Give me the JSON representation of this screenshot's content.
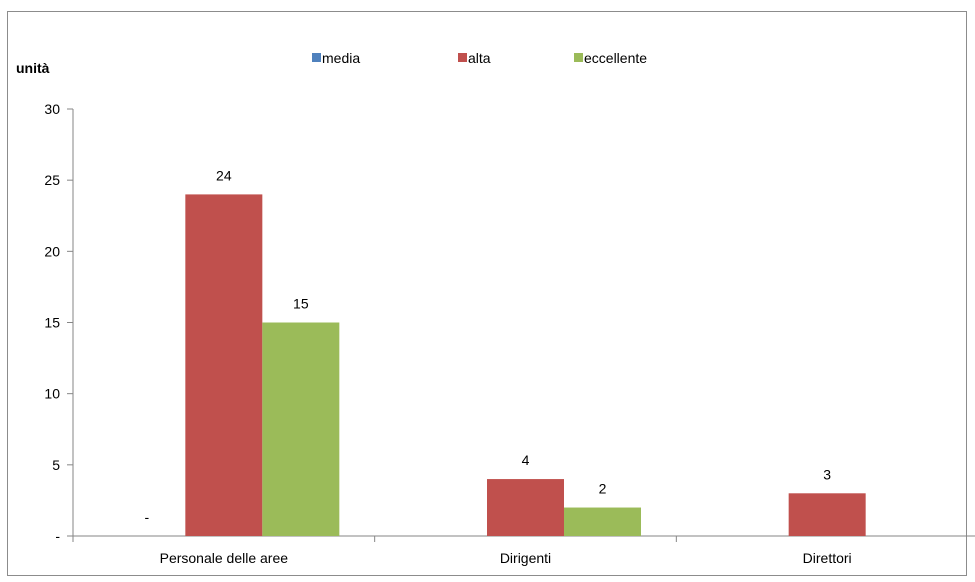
{
  "chart_data": {
    "type": "bar",
    "title": "",
    "ylabel": "unità",
    "xlabel": "",
    "ylim": [
      0,
      30
    ],
    "yticks": [
      {
        "value": 0,
        "label": "-"
      },
      {
        "value": 5,
        "label": "5"
      },
      {
        "value": 10,
        "label": "10"
      },
      {
        "value": 15,
        "label": "15"
      },
      {
        "value": 20,
        "label": "20"
      },
      {
        "value": 25,
        "label": "25"
      },
      {
        "value": 30,
        "label": "30"
      }
    ],
    "categories": [
      "Personale delle aree",
      "Dirigenti",
      "Direttori"
    ],
    "series": [
      {
        "name": "media",
        "color": "#4f81bd",
        "values": [
          0,
          null,
          null
        ],
        "labels": [
          "-",
          "",
          ""
        ]
      },
      {
        "name": "alta",
        "color": "#c0504d",
        "values": [
          24,
          4,
          3
        ],
        "labels": [
          "24",
          "4",
          "3"
        ]
      },
      {
        "name": "eccellente",
        "color": "#9bbb59",
        "values": [
          15,
          2,
          null
        ],
        "labels": [
          "15",
          "2",
          ""
        ]
      }
    ],
    "legend_position": "top",
    "grid": false
  }
}
